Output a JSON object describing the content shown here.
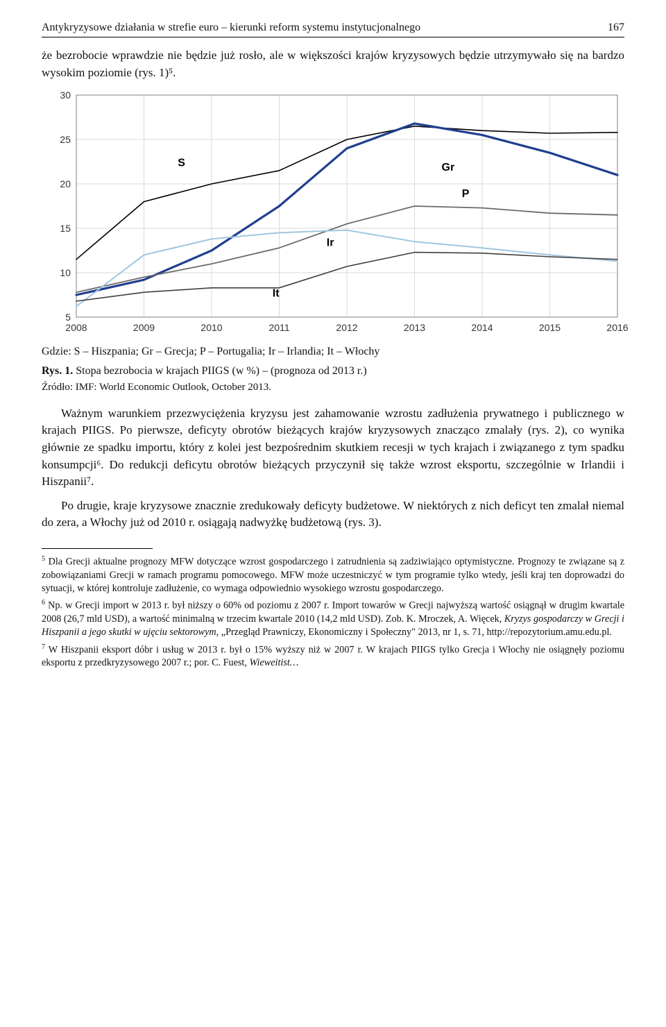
{
  "header": {
    "running_title": "Antykryzysowe działania w strefie euro – kierunki reform systemu instytucjonalnego",
    "page_number": "167"
  },
  "intro_para": "że bezrobocie wprawdzie nie będzie już rosło, ale w większości krajów kryzysowych będzie utrzymywało się na bardzo wysokim poziomie (rys. 1)⁵.",
  "chart": {
    "type": "line",
    "years": [
      "2008",
      "2009",
      "2010",
      "2011",
      "2012",
      "2013",
      "2014",
      "2015",
      "2016"
    ],
    "ylim": [
      5,
      30
    ],
    "ytick_step": 5,
    "yticks": [
      "5",
      "10",
      "15",
      "20",
      "25",
      "30"
    ],
    "background_color": "#ffffff",
    "grid_color": "#d9d9d9",
    "axis_color": "#808080",
    "label_fontsize": 14,
    "line_width": 2.2,
    "series": [
      {
        "name": "S",
        "label": "S",
        "color": "#000000",
        "width": 1.6,
        "values": [
          11.5,
          18.0,
          20.0,
          21.5,
          25.0,
          26.5,
          26.0,
          25.7,
          25.8
        ],
        "lx": 2009.5,
        "ly": 22.0
      },
      {
        "name": "Gr",
        "label": "Gr",
        "color": "#1f3f8f",
        "width": 3.2,
        "values": [
          7.5,
          9.2,
          12.5,
          17.5,
          24.0,
          26.8,
          25.5,
          23.5,
          21.0
        ],
        "lx": 2013.4,
        "ly": 21.5
      },
      {
        "name": "P",
        "label": "P",
        "color": "#6b6b6b",
        "width": 1.8,
        "values": [
          7.8,
          9.5,
          11.0,
          12.8,
          15.5,
          17.5,
          17.3,
          16.7,
          16.5
        ],
        "lx": 2013.7,
        "ly": 18.5
      },
      {
        "name": "Ir",
        "label": "Ir",
        "color": "#9fc6df",
        "width": 2.0,
        "values": [
          6.2,
          12.0,
          13.8,
          14.5,
          14.8,
          13.5,
          12.8,
          12.0,
          11.3
        ],
        "lx": 2011.7,
        "ly": 13.0
      },
      {
        "name": "It",
        "label": "It",
        "color": "#3f3f3f",
        "width": 1.6,
        "values": [
          6.8,
          7.8,
          8.3,
          8.3,
          10.7,
          12.3,
          12.2,
          11.8,
          11.5
        ],
        "lx": 2010.9,
        "ly": 7.3
      }
    ]
  },
  "legend_text": "Gdzie: S – Hiszpania; Gr – Grecja; P – Portugalia; Ir – Irlandia; It – Włochy",
  "fig_caption_bold": "Rys. 1.",
  "fig_caption_rest": " Stopa bezrobocia w krajach PIIGS (w %) – (prognoza od 2013 r.)",
  "source_text": "Źródło: IMF: World Economic Outlook, October 2013.",
  "body": {
    "p1": "Ważnym warunkiem przezwyciężenia kryzysu jest zahamowanie wzrostu zadłużenia prywatnego i publicznego w krajach PIIGS. Po pierwsze, deficyty obrotów bieżących krajów kryzysowych znacząco zmalały (rys. 2), co wynika głównie ze spadku importu, który z kolei jest bezpośrednim skutkiem recesji w tych krajach i związanego z tym spadku konsumpcji⁶. Do redukcji deficytu obrotów bieżących przyczynił się także wzrost eksportu, szczególnie w Irlandii i Hiszpanii⁷.",
    "p2": "Po drugie, kraje kryzysowe znacznie zredukowały deficyty budżetowe. W niektórych z nich deficyt ten zmalał niemal do zera, a Włochy już od 2010 r. osiągają nadwyżkę budżetową (rys. 3)."
  },
  "footnotes": {
    "f5_num": "5",
    "f5": " Dla Grecji aktualne prognozy MFW dotyczące wzrost gospodarczego i zatrudnienia są zadziwiająco optymistyczne. Prognozy te związane są z zobowiązaniami Grecji w ramach programu pomocowego. MFW może uczestniczyć w tym programie tylko wtedy, jeśli kraj ten doprowadzi do sytuacji, w której kontroluje zadłużenie, co wymaga odpowiednio wysokiego wzrostu gospodarczego.",
    "f6_num": "6",
    "f6_a": " Np. w Grecji import w 2013 r. był niższy o 60% od poziomu z 2007 r. Import towarów w Grecji najwyższą wartość osiągnął w drugim kwartale 2008 (26,7 mld USD), a wartość minimalną w trzecim kwartale 2010 (14,2 mld USD). Zob. K. Mroczek, A. Więcek, ",
    "f6_i": "Kryzys gospodarczy w Grecji i Hiszpanii a jego skutki w ujęciu sektorowym",
    "f6_b": ", „Przegląd Prawniczy, Ekonomiczny i Społeczny\" 2013, nr 1, s. 71, http://repozytorium.amu.edu.pl.",
    "f7_num": "7",
    "f7_a": " W Hiszpanii eksport dóbr i usług w 2013 r. był o 15% wyższy niż w 2007 r. W krajach PIIGS tylko Grecja i Włochy nie osiągnęły poziomu eksportu z przedkryzysowego 2007 r.; por. C. Fuest, ",
    "f7_i": "Wieweitist…"
  }
}
